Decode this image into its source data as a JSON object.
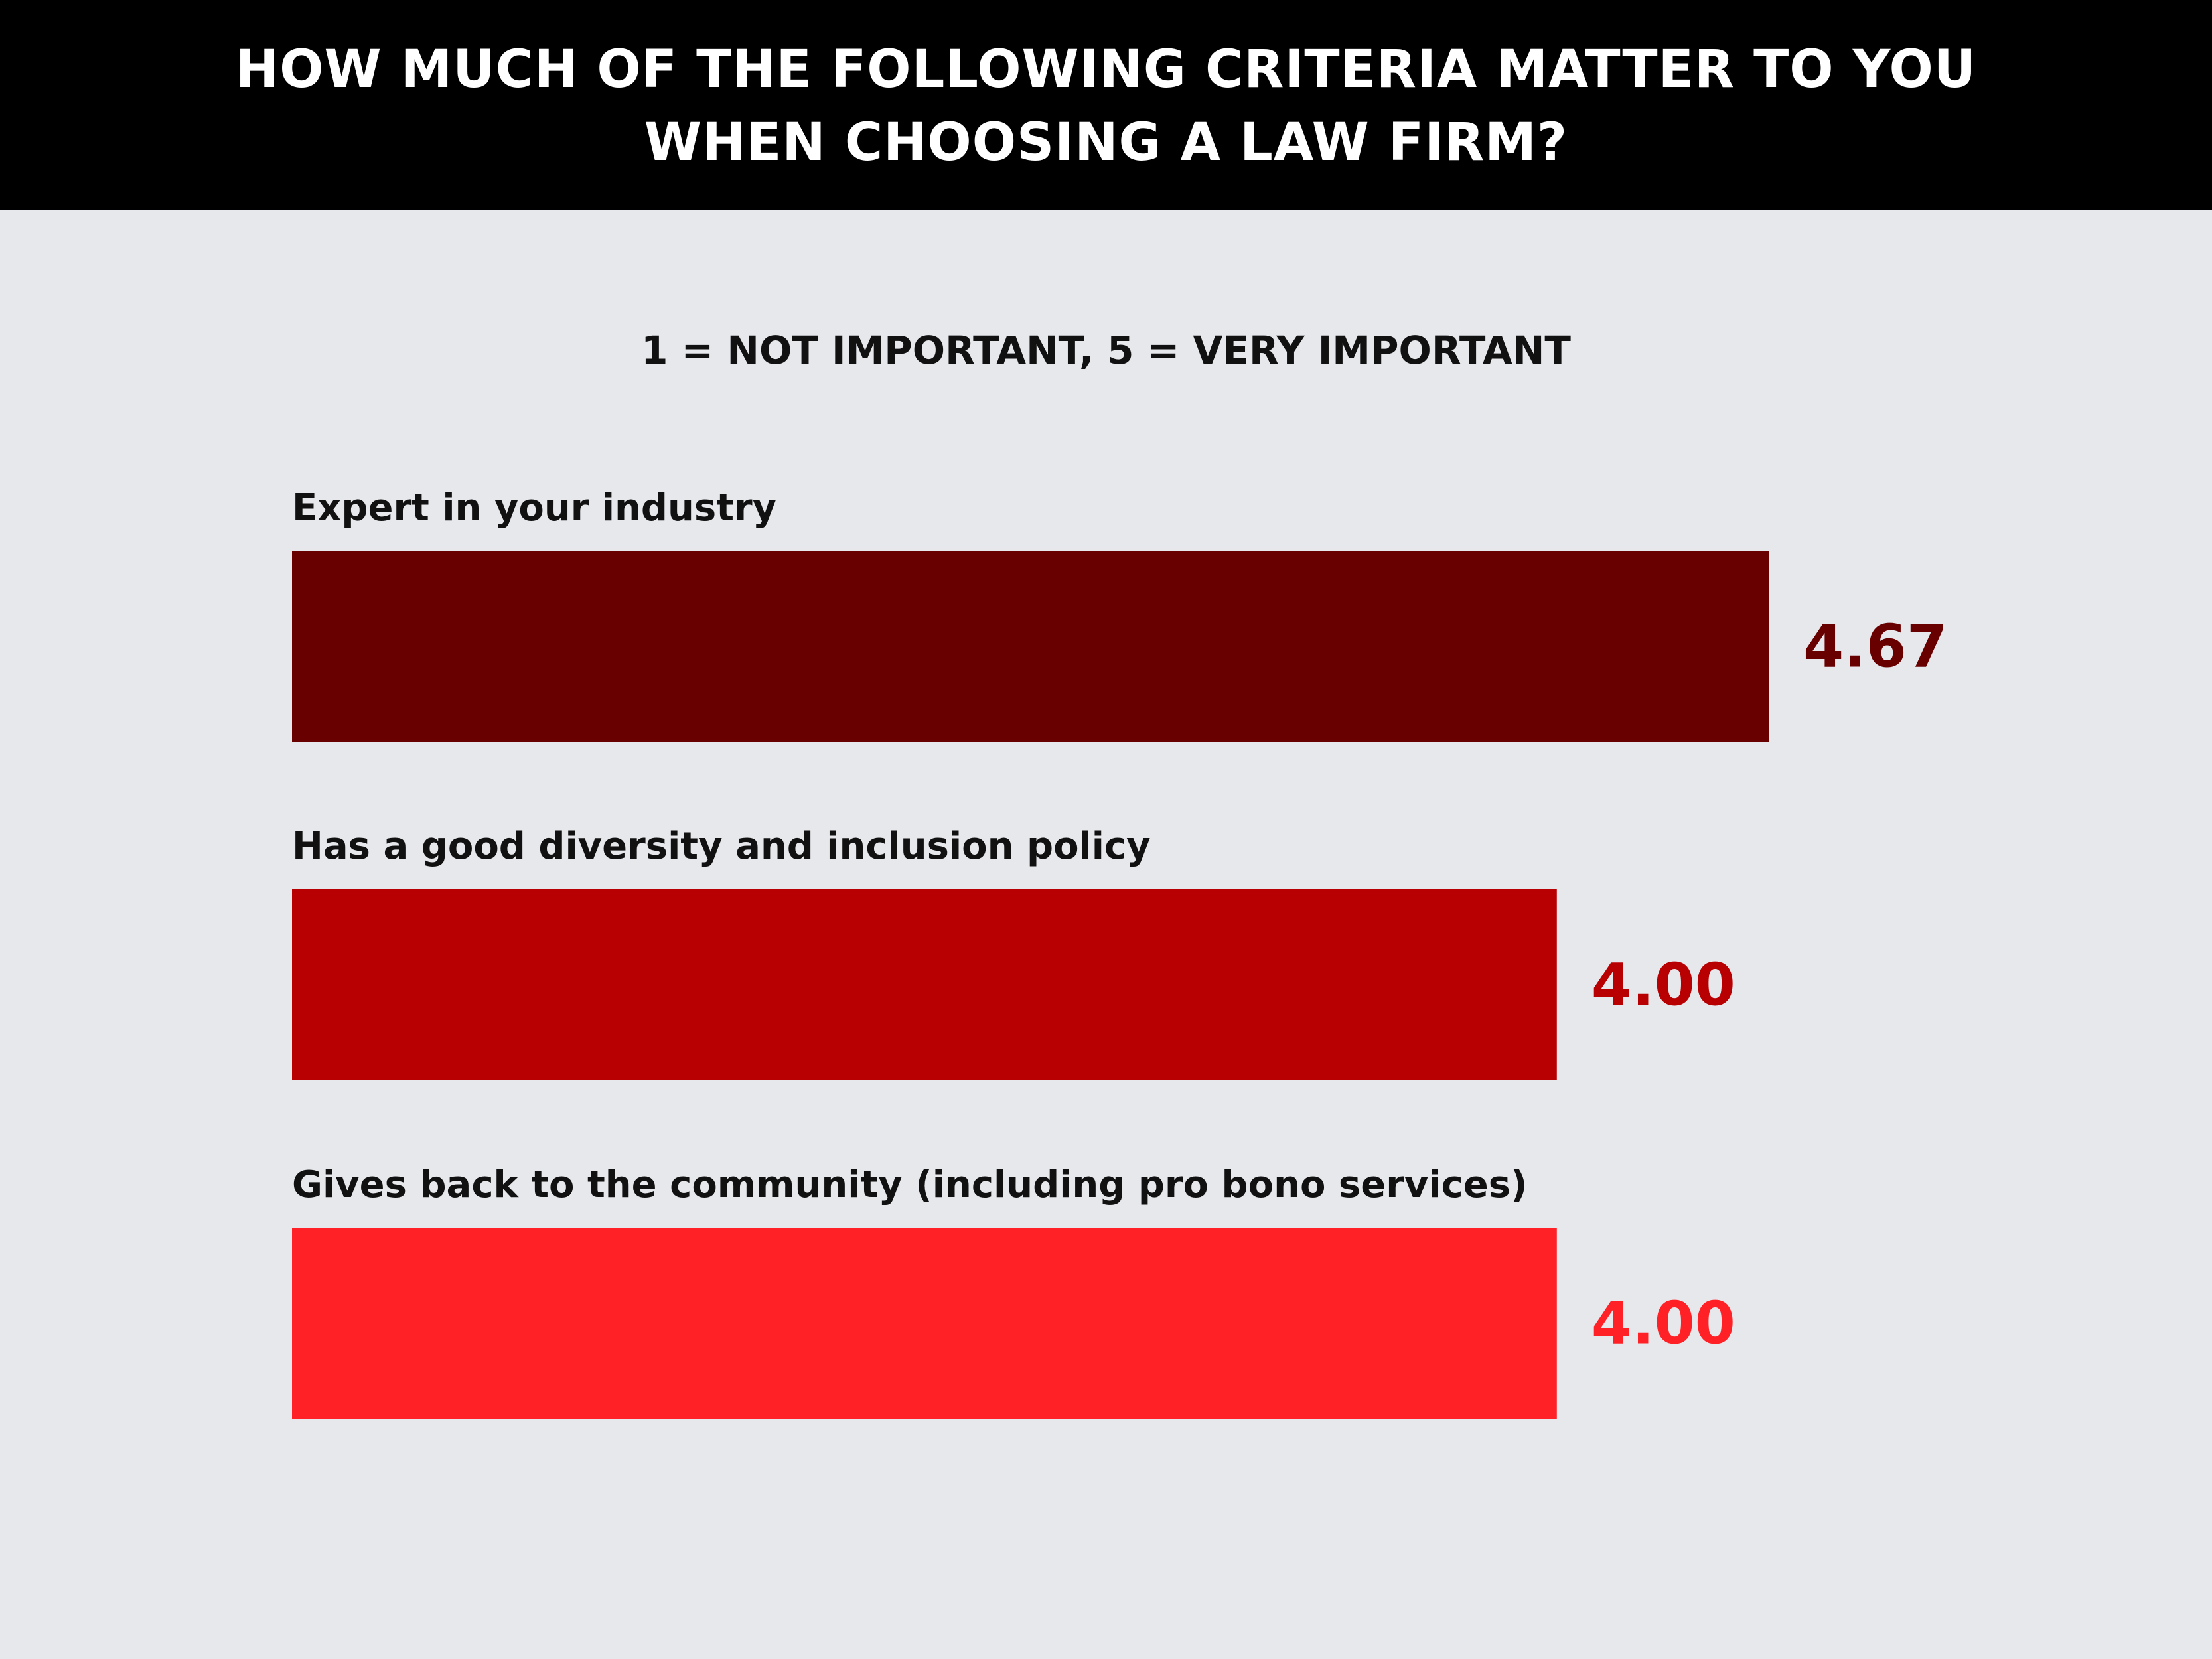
{
  "header": {
    "title": "HOW MUCH OF THE FOLLOWING CRITERIA MATTER TO YOU WHEN CHOOSING A LAW FIRM?"
  },
  "chart_data": {
    "type": "bar",
    "orientation": "horizontal",
    "title": "HOW MUCH OF THE FOLLOWING CRITERIA MATTER TO YOU WHEN CHOOSING A LAW FIRM?",
    "subtitle": "1 = NOT IMPORTANT, 5 = VERY IMPORTANT",
    "categories": [
      "Expert in your industry",
      "Has a good diversity and inclusion policy",
      "Gives back to the community (including pro bono services)"
    ],
    "values": [
      4.67,
      4.0,
      4.0
    ],
    "value_labels": [
      "4.67",
      "4.00",
      "4.00"
    ],
    "colors": [
      "#680000",
      "#b80003",
      "#ff2125"
    ],
    "xlim": [
      0,
      5
    ],
    "grid": false,
    "xlabel": "",
    "ylabel": ""
  },
  "colors": {
    "header_background": "#000000",
    "page_background": "#e7e8ec"
  }
}
